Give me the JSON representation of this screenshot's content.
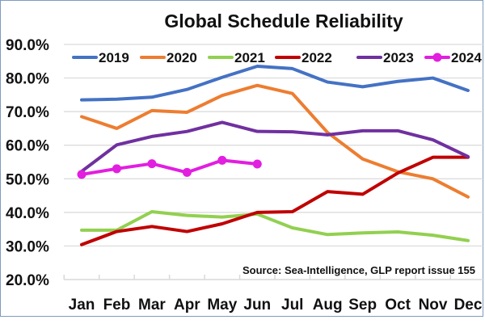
{
  "chart_data": {
    "type": "line",
    "title": "Global Schedule Reliability",
    "xlabel": "",
    "ylabel": "",
    "categories": [
      "Jan",
      "Feb",
      "Mar",
      "Apr",
      "May",
      "Jun",
      "Jul",
      "Aug",
      "Sep",
      "Oct",
      "Nov",
      "Dec"
    ],
    "ylim": [
      20,
      90
    ],
    "yticks": [
      "90.0%",
      "80.0%",
      "70.0%",
      "60.0%",
      "50.0%",
      "40.0%",
      "30.0%",
      "20.0%"
    ],
    "ytick_values": [
      90,
      80,
      70,
      60,
      50,
      40,
      30,
      20
    ],
    "grid": true,
    "legend_position": "top",
    "annotation": "Source: Sea-Intelligence, GLP report issue 155",
    "series": [
      {
        "name": "2019",
        "color": "#4472c4",
        "markers": false,
        "values": [
          73.5,
          73.7,
          74.3,
          76.6,
          80.2,
          83.5,
          82.8,
          78.8,
          77.4,
          79.0,
          80.0,
          76.3
        ]
      },
      {
        "name": "2020",
        "color": "#ed7d31",
        "markers": false,
        "values": [
          68.5,
          65.0,
          70.3,
          69.8,
          74.8,
          77.8,
          75.4,
          63.8,
          55.9,
          52.1,
          50.0,
          44.6
        ]
      },
      {
        "name": "2021",
        "color": "#92d050",
        "markers": false,
        "values": [
          34.7,
          34.7,
          40.2,
          39.1,
          38.6,
          39.5,
          35.4,
          33.4,
          33.9,
          34.2,
          33.2,
          31.6
        ]
      },
      {
        "name": "2022",
        "color": "#c00000",
        "markers": false,
        "values": [
          30.4,
          34.3,
          35.8,
          34.3,
          36.6,
          40.0,
          40.2,
          46.2,
          45.4,
          51.7,
          56.4,
          56.4
        ]
      },
      {
        "name": "2023",
        "color": "#7030a0",
        "markers": false,
        "values": [
          52.2,
          60.1,
          62.6,
          64.1,
          66.8,
          64.1,
          64.0,
          63.1,
          64.3,
          64.3,
          61.6,
          56.6
        ]
      },
      {
        "name": "2024",
        "color": "#e21ee0",
        "markers": true,
        "values": [
          51.3,
          53.0,
          54.5,
          51.9,
          55.5,
          54.4
        ]
      }
    ]
  }
}
